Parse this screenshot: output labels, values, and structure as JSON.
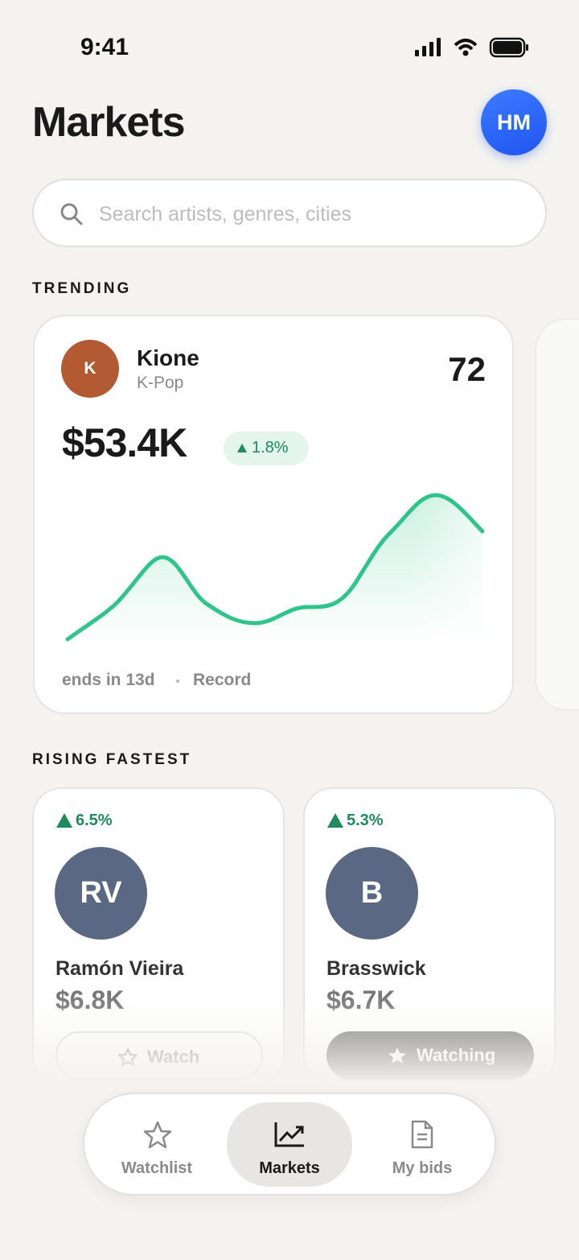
{
  "status_bar": {
    "time": "9:41"
  },
  "header": {
    "title": "Markets",
    "avatar": "HM"
  },
  "search": {
    "placeholder": "Search artists, genres, cities"
  },
  "trending": {
    "heading": "TRENDING",
    "cards": [
      {
        "initial": "K",
        "name": "Kione",
        "genre": "K-Pop",
        "score": "72",
        "price": "$53.4K",
        "change": "1.8%",
        "ends": "ends in 13d",
        "category": "Record"
      }
    ]
  },
  "rising": {
    "heading": "RISING FASTEST",
    "cards": [
      {
        "change": "6.5%",
        "initials": "RV",
        "name": "Ramón Vieira",
        "price": "$6.8K",
        "button": "Watch"
      },
      {
        "change": "5.3%",
        "initials": "B",
        "name": "Brasswick",
        "price": "$6.7K",
        "button": "Watching"
      }
    ]
  },
  "nav": {
    "items": [
      "Watchlist",
      "Markets",
      "My bids"
    ]
  }
}
